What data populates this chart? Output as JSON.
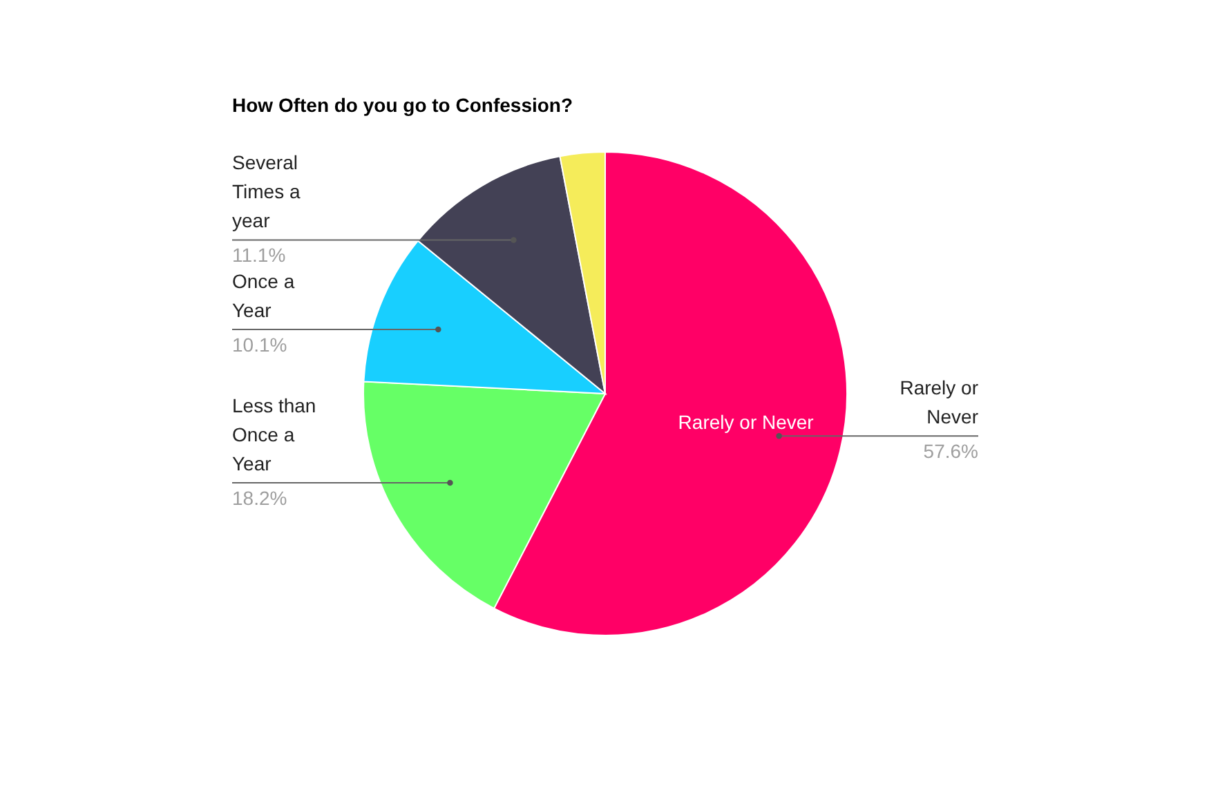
{
  "chart_data": {
    "type": "pie",
    "title": "How Often do you go to Confession?",
    "categories": [
      "Rarely or Never",
      "Less than Once a Year",
      "Once a Year",
      "Several Times a year",
      null
    ],
    "values": [
      57.6,
      18.2,
      10.1,
      11.1,
      3.0
    ],
    "colors": [
      "#ff0066",
      "#66ff66",
      "#18cfff",
      "#434155",
      "#f5ec5a"
    ],
    "value_labels": [
      "57.6%",
      "18.2%",
      "10.1%",
      "11.1%",
      null
    ],
    "annotations": [
      "Rarely or Never"
    ]
  }
}
